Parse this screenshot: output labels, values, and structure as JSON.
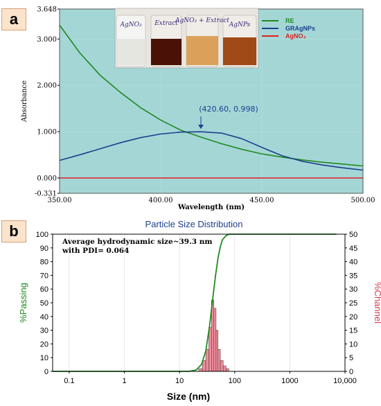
{
  "panel_a_label": "a",
  "panel_b_label": "b",
  "photo": {
    "vials": [
      "AgNO₃",
      "Extract",
      "AgNO₃ + Extract",
      "AgNPs"
    ]
  },
  "chart_data": [
    {
      "type": "line",
      "xlabel": "Wavelength (nm)",
      "ylabel": "Absorbance",
      "xlim": [
        350,
        500
      ],
      "ylim": [
        -0.331,
        3.648
      ],
      "xticks": [
        "350.00",
        "400.00",
        "450.00",
        "500.00"
      ],
      "yticks": [
        "3.648",
        "3.000",
        "2.000",
        "1.000",
        "0.000",
        "-0.331"
      ],
      "legend_position": "top-right",
      "annotation": {
        "text": "(420.60, 0.998)",
        "x": 420.6,
        "y": 0.998
      },
      "series": [
        {
          "name": "RE",
          "color": "#1f8a1f",
          "x": [
            350,
            360,
            370,
            380,
            390,
            400,
            410,
            420,
            430,
            440,
            450,
            460,
            470,
            480,
            490,
            500
          ],
          "values": [
            3.3,
            2.7,
            2.22,
            1.85,
            1.52,
            1.25,
            1.03,
            0.88,
            0.74,
            0.62,
            0.52,
            0.45,
            0.39,
            0.34,
            0.3,
            0.26
          ]
        },
        {
          "name": "GRAgNPs",
          "color": "#1c3f8c",
          "x": [
            350,
            360,
            370,
            380,
            390,
            400,
            410,
            420,
            430,
            440,
            450,
            460,
            470,
            480,
            490,
            500
          ],
          "values": [
            0.38,
            0.5,
            0.63,
            0.76,
            0.87,
            0.95,
            0.99,
            0.998,
            0.97,
            0.85,
            0.66,
            0.48,
            0.36,
            0.28,
            0.22,
            0.17
          ]
        },
        {
          "name": "AgNO₃",
          "color": "#e02020",
          "x": [
            350,
            500
          ],
          "values": [
            0.0,
            0.0
          ]
        }
      ]
    },
    {
      "type": "bar+line",
      "title": "Particle Size Distribution",
      "xlabel": "Size (nm)",
      "ylabel_left": "%Passing",
      "ylabel_right": "%Channel",
      "x_scale": "log",
      "xlim": [
        0.05,
        10000
      ],
      "xticks": [
        0.1,
        1,
        10,
        100,
        1000,
        10000
      ],
      "xtick_labels": [
        "0.1",
        "1",
        "10",
        "100",
        "1000",
        "10,000"
      ],
      "ylim_left": [
        0,
        100
      ],
      "yticks_left": [
        0,
        10,
        20,
        30,
        40,
        50,
        60,
        70,
        80,
        90,
        100
      ],
      "ylim_right": [
        0,
        50
      ],
      "yticks_right": [
        0,
        5,
        10,
        15,
        20,
        25,
        30,
        35,
        40,
        45,
        50
      ],
      "annotation_lines": [
        "Average hydrodynamic size~39.3 nm",
        "with PDI= 0.064"
      ],
      "passing_line": {
        "color": "#1f8a1f",
        "x": [
          0.05,
          15,
          20,
          25,
          30,
          35,
          40,
          45,
          50,
          55,
          60,
          70,
          80,
          100,
          7000
        ],
        "values": [
          0,
          0,
          1,
          5,
          15,
          33,
          53,
          70,
          83,
          91,
          96,
          99,
          100,
          100,
          100
        ]
      },
      "channel_bars": {
        "color": "#f08a9a",
        "x": [
          24,
          28,
          32,
          36,
          40,
          44,
          48,
          52,
          58,
          66,
          74
        ],
        "values": [
          1,
          4,
          8,
          16,
          26,
          23,
          15,
          8,
          4,
          2,
          1
        ]
      }
    }
  ]
}
